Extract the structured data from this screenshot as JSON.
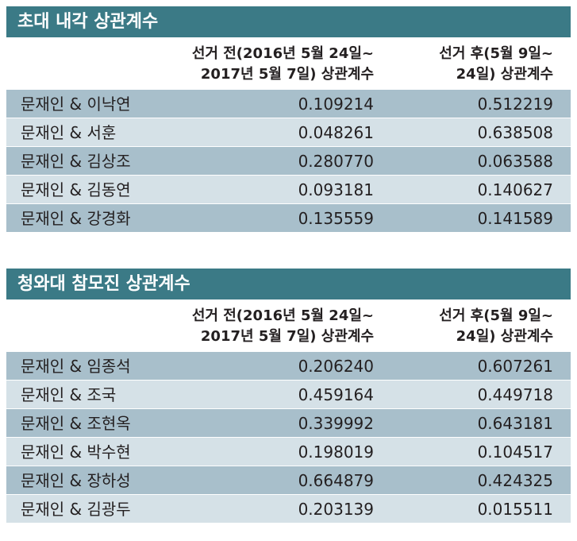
{
  "tables": [
    {
      "title": "초대 내각 상관계수",
      "header_before_line1": "선거 전(2016년 5월 24일~",
      "header_before_line2": "2017년 5월 7일) 상관계수",
      "header_after_line1": "선거 후(5월 9일~",
      "header_after_line2": "24일) 상관계수",
      "rows": [
        {
          "pair": "문재인 & 이낙연",
          "before": "0.109214",
          "after": "0.512219"
        },
        {
          "pair": "문재인 & 서훈",
          "before": "0.048261",
          "after": "0.638508"
        },
        {
          "pair": "문재인 & 김상조",
          "before": "0.280770",
          "after": "0.063588"
        },
        {
          "pair": "문재인 & 김동연",
          "before": "0.093181",
          "after": "0.140627"
        },
        {
          "pair": "문재인 & 강경화",
          "before": "0.135559",
          "after": "0.141589"
        }
      ]
    },
    {
      "title": "청와대 참모진 상관계수",
      "header_before_line1": "선거 전(2016년 5월 24일~",
      "header_before_line2": "2017년 5월 7일) 상관계수",
      "header_after_line1": "선거 후(5월 9일~",
      "header_after_line2": "24일) 상관계수",
      "rows": [
        {
          "pair": "문재인 & 임종석",
          "before": "0.206240",
          "after": "0.607261"
        },
        {
          "pair": "문재인 & 조국",
          "before": "0.459164",
          "after": "0.449718"
        },
        {
          "pair": "문재인 & 조현옥",
          "before": "0.339992",
          "after": "0.643181"
        },
        {
          "pair": "문재인 & 박수현",
          "before": "0.198019",
          "after": "0.104517"
        },
        {
          "pair": "문재인 & 장하성",
          "before": "0.664879",
          "after": "0.424325"
        },
        {
          "pair": "문재인 & 김광두",
          "before": "0.203139",
          "after": "0.015511"
        }
      ]
    }
  ],
  "colors": {
    "title_bar": "#3b7a86",
    "row_dark": "#a8bfcb",
    "row_light": "#d5e1e7"
  }
}
